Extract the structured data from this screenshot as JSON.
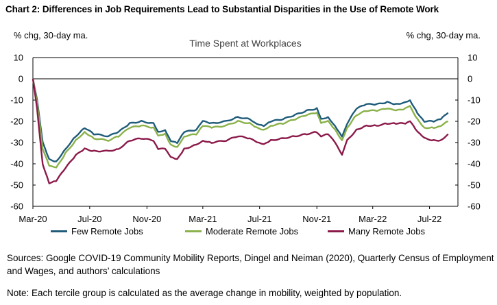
{
  "chart_title": "Chart 2: Differences in Job Requirements Lead to Substantial Disparities in the Use of Remote Work",
  "left_unit": "% chg, 30-day ma.",
  "right_unit": "% chg, 30-day ma.",
  "sources": "Sources: Google COVID-19 Community Mobility Reports, Dingel and Neiman (2020), Quarterly Census of Employment and Wages, and authors’ calculations",
  "note": "Note: Each tercile group is calculated as the average change in mobility, weighted by population.",
  "chart_data": {
    "type": "line",
    "title": "Time Spent at Workplaces",
    "ylim": [
      -60,
      10
    ],
    "yticks": [
      10,
      0,
      -10,
      -20,
      -30,
      -40,
      -50,
      -60
    ],
    "x_range": [
      "2020-03-01",
      "2022-08-31"
    ],
    "xtick_labels": [
      {
        "label": "Mar-20",
        "date": "2020-03-01"
      },
      {
        "label": "Jul-20",
        "date": "2020-07-01"
      },
      {
        "label": "Nov-20",
        "date": "2020-11-01"
      },
      {
        "label": "Mar-21",
        "date": "2021-03-01"
      },
      {
        "label": "Jul-21",
        "date": "2021-07-01"
      },
      {
        "label": "Nov-21",
        "date": "2021-11-01"
      },
      {
        "label": "Mar-22",
        "date": "2022-03-01"
      },
      {
        "label": "Jul-22",
        "date": "2022-07-01"
      }
    ],
    "legend_position": "bottom",
    "series": [
      {
        "name": "Few Remote Jobs",
        "color": "#1f5c7a",
        "points": [
          [
            "2020-03-01",
            0
          ],
          [
            "2020-03-10",
            -10
          ],
          [
            "2020-03-22",
            -30
          ],
          [
            "2020-04-05",
            -38
          ],
          [
            "2020-04-20",
            -39
          ],
          [
            "2020-05-10",
            -33
          ],
          [
            "2020-06-01",
            -27
          ],
          [
            "2020-06-20",
            -23
          ],
          [
            "2020-07-10",
            -26
          ],
          [
            "2020-08-10",
            -27
          ],
          [
            "2020-09-01",
            -25
          ],
          [
            "2020-09-25",
            -21
          ],
          [
            "2020-10-20",
            -20
          ],
          [
            "2020-11-15",
            -21
          ],
          [
            "2020-11-25",
            -25
          ],
          [
            "2020-12-10",
            -24
          ],
          [
            "2020-12-22",
            -29
          ],
          [
            "2021-01-05",
            -30
          ],
          [
            "2021-01-20",
            -25
          ],
          [
            "2021-02-15",
            -24
          ],
          [
            "2021-03-01",
            -20
          ],
          [
            "2021-03-20",
            -21
          ],
          [
            "2021-04-20",
            -20
          ],
          [
            "2021-05-15",
            -18
          ],
          [
            "2021-06-10",
            -19
          ],
          [
            "2021-06-25",
            -21
          ],
          [
            "2021-07-10",
            -22
          ],
          [
            "2021-07-25",
            -20
          ],
          [
            "2021-08-20",
            -19
          ],
          [
            "2021-09-15",
            -17
          ],
          [
            "2021-10-10",
            -15
          ],
          [
            "2021-11-01",
            -14
          ],
          [
            "2021-11-10",
            -19
          ],
          [
            "2021-11-25",
            -18
          ],
          [
            "2021-12-10",
            -22
          ],
          [
            "2021-12-25",
            -27
          ],
          [
            "2022-01-05",
            -21
          ],
          [
            "2022-01-25",
            -14
          ],
          [
            "2022-02-15",
            -12
          ],
          [
            "2022-03-10",
            -12
          ],
          [
            "2022-04-01",
            -11
          ],
          [
            "2022-04-20",
            -12
          ],
          [
            "2022-05-10",
            -11
          ],
          [
            "2022-05-20",
            -10
          ],
          [
            "2022-06-05",
            -16
          ],
          [
            "2022-06-20",
            -20
          ],
          [
            "2022-07-10",
            -20
          ],
          [
            "2022-07-25",
            -19
          ],
          [
            "2022-08-10",
            -16
          ]
        ]
      },
      {
        "name": "Moderate Remote Jobs",
        "color": "#8ab14a",
        "points": [
          [
            "2020-03-01",
            0
          ],
          [
            "2020-03-10",
            -11
          ],
          [
            "2020-03-22",
            -33
          ],
          [
            "2020-04-05",
            -41
          ],
          [
            "2020-04-20",
            -42
          ],
          [
            "2020-05-10",
            -35
          ],
          [
            "2020-06-01",
            -29
          ],
          [
            "2020-06-20",
            -25
          ],
          [
            "2020-07-10",
            -28
          ],
          [
            "2020-08-10",
            -29
          ],
          [
            "2020-09-01",
            -27
          ],
          [
            "2020-09-25",
            -23
          ],
          [
            "2020-10-20",
            -22
          ],
          [
            "2020-11-15",
            -23
          ],
          [
            "2020-11-25",
            -27
          ],
          [
            "2020-12-10",
            -26
          ],
          [
            "2020-12-22",
            -31
          ],
          [
            "2021-01-05",
            -32
          ],
          [
            "2021-01-20",
            -27
          ],
          [
            "2021-02-15",
            -26
          ],
          [
            "2021-03-01",
            -22
          ],
          [
            "2021-03-20",
            -23
          ],
          [
            "2021-04-20",
            -22
          ],
          [
            "2021-05-15",
            -20
          ],
          [
            "2021-06-10",
            -21
          ],
          [
            "2021-06-25",
            -23
          ],
          [
            "2021-07-10",
            -24
          ],
          [
            "2021-07-25",
            -22
          ],
          [
            "2021-08-20",
            -21
          ],
          [
            "2021-09-15",
            -19
          ],
          [
            "2021-10-10",
            -17
          ],
          [
            "2021-11-01",
            -16
          ],
          [
            "2021-11-10",
            -21
          ],
          [
            "2021-11-25",
            -20
          ],
          [
            "2021-12-10",
            -24
          ],
          [
            "2021-12-25",
            -29
          ],
          [
            "2022-01-05",
            -23
          ],
          [
            "2022-01-25",
            -17
          ],
          [
            "2022-02-15",
            -15
          ],
          [
            "2022-03-10",
            -15
          ],
          [
            "2022-04-01",
            -14
          ],
          [
            "2022-04-20",
            -15
          ],
          [
            "2022-05-10",
            -14
          ],
          [
            "2022-05-20",
            -13
          ],
          [
            "2022-06-05",
            -19
          ],
          [
            "2022-06-20",
            -23
          ],
          [
            "2022-07-10",
            -23
          ],
          [
            "2022-07-25",
            -22
          ],
          [
            "2022-08-10",
            -20
          ]
        ]
      },
      {
        "name": "Many Remote Jobs",
        "color": "#8b1a4a",
        "points": [
          [
            "2020-03-01",
            0
          ],
          [
            "2020-03-10",
            -14
          ],
          [
            "2020-03-22",
            -40
          ],
          [
            "2020-04-05",
            -49
          ],
          [
            "2020-04-20",
            -48
          ],
          [
            "2020-05-10",
            -42
          ],
          [
            "2020-06-01",
            -36
          ],
          [
            "2020-06-20",
            -33
          ],
          [
            "2020-07-10",
            -34
          ],
          [
            "2020-08-10",
            -34
          ],
          [
            "2020-09-01",
            -33
          ],
          [
            "2020-09-25",
            -29
          ],
          [
            "2020-10-20",
            -28
          ],
          [
            "2020-11-15",
            -29
          ],
          [
            "2020-11-25",
            -33
          ],
          [
            "2020-12-10",
            -33
          ],
          [
            "2020-12-22",
            -37
          ],
          [
            "2021-01-05",
            -38
          ],
          [
            "2021-01-20",
            -33
          ],
          [
            "2021-02-15",
            -31
          ],
          [
            "2021-03-01",
            -29
          ],
          [
            "2021-03-20",
            -30
          ],
          [
            "2021-04-20",
            -29
          ],
          [
            "2021-05-15",
            -27
          ],
          [
            "2021-06-10",
            -28
          ],
          [
            "2021-06-25",
            -30
          ],
          [
            "2021-07-10",
            -31
          ],
          [
            "2021-07-25",
            -29
          ],
          [
            "2021-08-20",
            -28
          ],
          [
            "2021-09-15",
            -27
          ],
          [
            "2021-10-10",
            -26
          ],
          [
            "2021-11-01",
            -25
          ],
          [
            "2021-11-10",
            -27
          ],
          [
            "2021-11-25",
            -26
          ],
          [
            "2021-12-10",
            -30
          ],
          [
            "2021-12-25",
            -36
          ],
          [
            "2022-01-05",
            -29
          ],
          [
            "2022-01-25",
            -24
          ],
          [
            "2022-02-15",
            -22
          ],
          [
            "2022-03-10",
            -22
          ],
          [
            "2022-04-01",
            -21
          ],
          [
            "2022-04-20",
            -21
          ],
          [
            "2022-05-10",
            -21
          ],
          [
            "2022-05-20",
            -20
          ],
          [
            "2022-06-05",
            -25
          ],
          [
            "2022-06-20",
            -28
          ],
          [
            "2022-07-10",
            -29
          ],
          [
            "2022-07-25",
            -29
          ],
          [
            "2022-08-10",
            -26
          ]
        ]
      }
    ]
  }
}
